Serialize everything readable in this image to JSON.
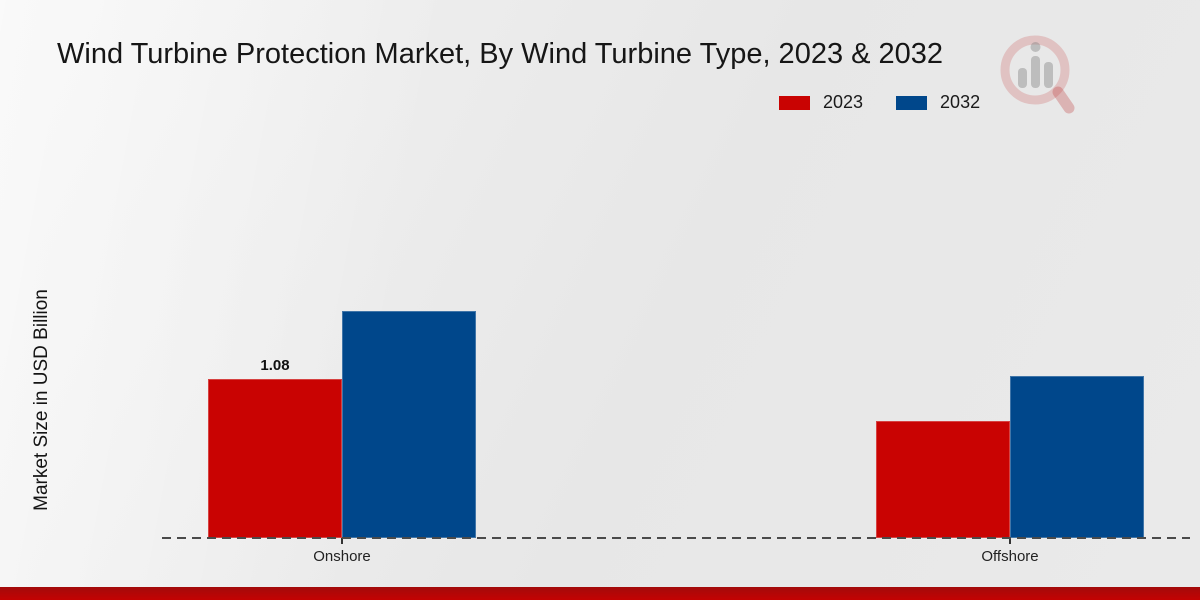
{
  "title": "Wind Turbine Protection Market, By Wind Turbine Type, 2023 & 2032",
  "ylabel": "Market Size in USD Billion",
  "legend": [
    {
      "label": "2023",
      "color": "#c90302"
    },
    {
      "label": "2032",
      "color": "#00478b"
    }
  ],
  "colors": {
    "series_2023": "#c90302",
    "series_2032": "#00478b",
    "footer_bar": "#c40202",
    "axis_dash": "#4a4a4a"
  },
  "chart_data": {
    "type": "bar",
    "categories": [
      "Onshore",
      "Offshore"
    ],
    "series": [
      {
        "name": "2023",
        "color": "#c90302",
        "values": [
          1.08,
          0.79
        ],
        "point_labels": [
          "1.08",
          ""
        ]
      },
      {
        "name": "2032",
        "color": "#00478b",
        "values": [
          1.54,
          1.1
        ],
        "point_labels": [
          "",
          ""
        ]
      }
    ],
    "title": "Wind Turbine Protection Market, By Wind Turbine Type, 2023 & 2032",
    "xlabel": "",
    "ylabel": "Market Size in USD Billion",
    "ylim": [
      0,
      2.6
    ],
    "grid": false,
    "legend_position": "top-right",
    "baseline_style": "dashed"
  }
}
